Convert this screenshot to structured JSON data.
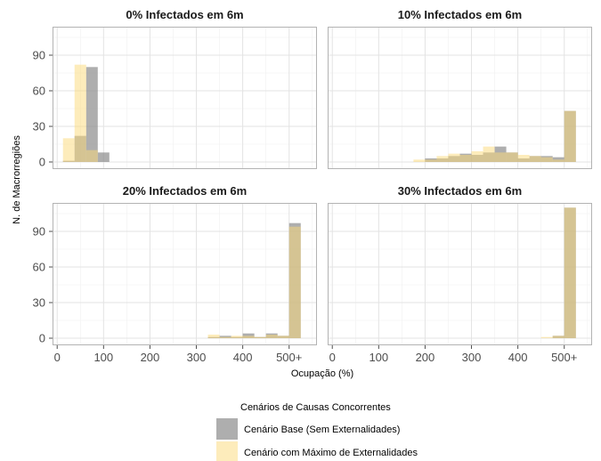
{
  "chart_data": {
    "type": "histogram",
    "layout": "2x2 facets",
    "xlabel": "Ocupação (%)",
    "ylabel": "N. de Macrorregiões",
    "xlim": [
      -10,
      560
    ],
    "ylim": [
      -6,
      114
    ],
    "x_ticks": [
      0,
      100,
      200,
      300,
      400,
      500
    ],
    "x_tick_labels": [
      "0",
      "100",
      "200",
      "300",
      "400",
      "500+"
    ],
    "y_ticks": [
      0,
      30,
      60,
      90
    ],
    "y_tick_labels": [
      "0",
      "30",
      "60",
      "90"
    ],
    "bin_width": 25,
    "grid": true,
    "legend": {
      "title": "Cenários de Causas Concorrentes",
      "position": "bottom",
      "entries": [
        {
          "name": "Cenário Base (Sem Externalidades)",
          "color": "#8c8c8c"
        },
        {
          "name": "Cenário com Máximo de Externalidades",
          "color": "#fbd978"
        }
      ]
    },
    "series_order": [
      "Cenário Base (Sem Externalidades)",
      "Cenário com Máximo de Externalidades"
    ],
    "panels": [
      {
        "title": "0% Infectados em 6m",
        "bins": [
          {
            "start": 12.5,
            "end": 37.5,
            "base": 1,
            "ext": 20
          },
          {
            "start": 37.5,
            "end": 62.5,
            "base": 22,
            "ext": 82
          },
          {
            "start": 62.5,
            "end": 87.5,
            "base": 80,
            "ext": 10
          },
          {
            "start": 87.5,
            "end": 112.5,
            "base": 8,
            "ext": 0
          }
        ]
      },
      {
        "title": "10% Infectados em 6m",
        "bins": [
          {
            "start": 175,
            "end": 200,
            "base": 0,
            "ext": 2
          },
          {
            "start": 200,
            "end": 225,
            "base": 3,
            "ext": 2
          },
          {
            "start": 225,
            "end": 250,
            "base": 3,
            "ext": 5
          },
          {
            "start": 250,
            "end": 275,
            "base": 5,
            "ext": 7
          },
          {
            "start": 275,
            "end": 300,
            "base": 7,
            "ext": 6
          },
          {
            "start": 300,
            "end": 325,
            "base": 6,
            "ext": 9
          },
          {
            "start": 325,
            "end": 350,
            "base": 8,
            "ext": 13
          },
          {
            "start": 350,
            "end": 375,
            "base": 13,
            "ext": 8
          },
          {
            "start": 375,
            "end": 400,
            "base": 8,
            "ext": 8
          },
          {
            "start": 400,
            "end": 425,
            "base": 3,
            "ext": 6
          },
          {
            "start": 425,
            "end": 450,
            "base": 5,
            "ext": 5
          },
          {
            "start": 450,
            "end": 475,
            "base": 5,
            "ext": 4
          },
          {
            "start": 475,
            "end": 500,
            "base": 4,
            "ext": 2
          },
          {
            "start": 500,
            "end": 525,
            "base": 43,
            "ext": 43
          }
        ]
      },
      {
        "title": "20% Infectados em 6m",
        "bins": [
          {
            "start": 325,
            "end": 350,
            "base": 1,
            "ext": 3
          },
          {
            "start": 350,
            "end": 375,
            "base": 2,
            "ext": 1
          },
          {
            "start": 375,
            "end": 400,
            "base": 1,
            "ext": 2
          },
          {
            "start": 400,
            "end": 425,
            "base": 4,
            "ext": 2
          },
          {
            "start": 425,
            "end": 450,
            "base": 1,
            "ext": 1
          },
          {
            "start": 450,
            "end": 475,
            "base": 4,
            "ext": 3
          },
          {
            "start": 475,
            "end": 500,
            "base": 2,
            "ext": 2
          },
          {
            "start": 500,
            "end": 525,
            "base": 97,
            "ext": 94
          }
        ]
      },
      {
        "title": "30% Infectados em 6m",
        "bins": [
          {
            "start": 450,
            "end": 475,
            "base": 0,
            "ext": 1
          },
          {
            "start": 475,
            "end": 500,
            "base": 2,
            "ext": 2
          },
          {
            "start": 500,
            "end": 525,
            "base": 110,
            "ext": 110
          }
        ]
      }
    ]
  }
}
